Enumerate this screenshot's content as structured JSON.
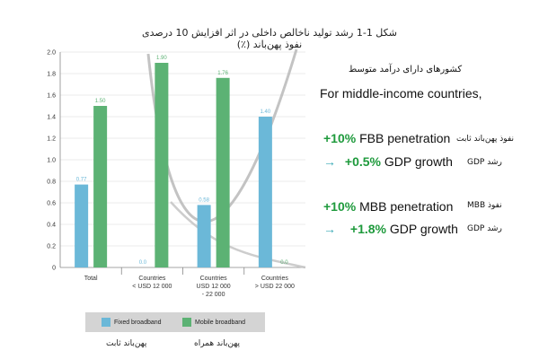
{
  "figure_title": "شکل 1-1 رشد تولید ناخالص داخلی در اثر افزایش 10 درصدی نفوذ پهن‌باند (٪)",
  "chart_data": {
    "type": "bar",
    "categories": [
      "Total",
      "Countries\n< USD 12 000",
      "Countries\nUSD 12 000\n- 22 000",
      "Countries\n> USD 22 000"
    ],
    "series": [
      {
        "name": "Fixed broadband",
        "color": "#6bb8d8",
        "values": [
          0.77,
          0.0,
          0.58,
          1.4
        ],
        "labels": [
          "0.77",
          "0.0",
          "0.58",
          "1.40"
        ]
      },
      {
        "name": "Mobile broadband",
        "color": "#5cb274",
        "values": [
          1.5,
          1.9,
          1.76,
          0.0
        ],
        "labels": [
          "1.50",
          "1.90",
          "1.76",
          "0.0"
        ]
      }
    ],
    "ylim": [
      0,
      2.0
    ],
    "yticks": [
      "0",
      "0.2",
      "0.4",
      "0.6",
      "0.8",
      "1.0",
      "1.2",
      "1.4",
      "1.6",
      "1.8",
      "2.0"
    ],
    "grid": true,
    "legend_position": "bottom"
  },
  "legend_fa": {
    "fixed": "پهن‌باند ثابت",
    "mobile": "پهن‌باند همراه"
  },
  "right_panel": {
    "heading_fa": "کشورهای دارای درآمد متوسط",
    "heading_en": "For middle-income countries,",
    "fbb_pct": "+10%",
    "fbb_label": "FBB penetration",
    "fbb_fa": "نفوذ پهن‌باند ثابت",
    "arrow": "→",
    "gdp1_pct": "+0.5%",
    "gdp_label": "GDP growth",
    "gdp_fa": "رشد GDP",
    "mbb_pct": "+10%",
    "mbb_label": "MBB penetration",
    "mbb_fa": "نفوذ MBB",
    "gdp2_pct": "+1.8%"
  }
}
